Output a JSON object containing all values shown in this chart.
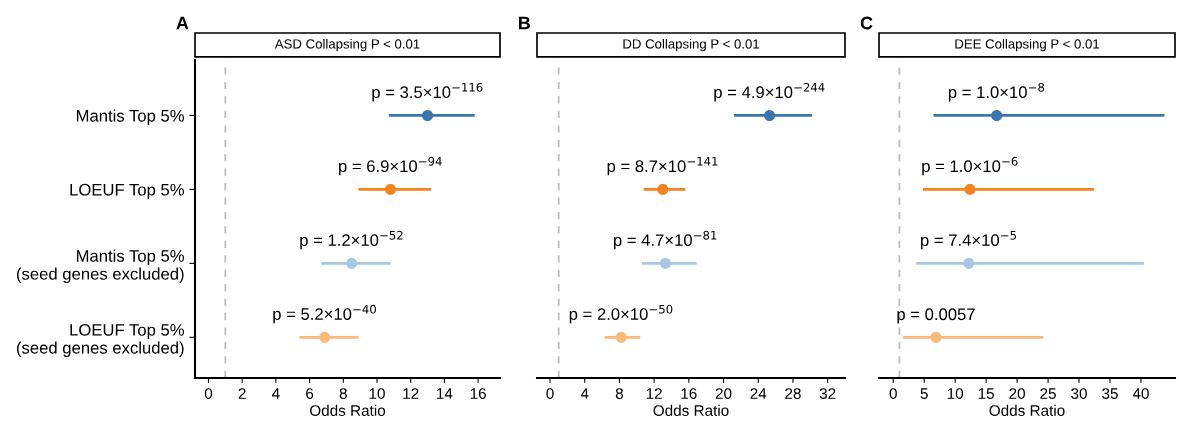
{
  "chart_data": [
    {
      "type": "scatter",
      "orientation": "horizontal",
      "title": "ASD Collapsing P < 0.01",
      "xlabel": "Odds Ratio",
      "categories": [
        "Mantis Top 5%",
        "LOEUF Top 5%",
        "Mantis Top 5%\n(seed genes excluded)",
        "LOEUF Top 5%\n(seed genes excluded)"
      ],
      "values": [
        13.0,
        10.8,
        8.5,
        6.9
      ],
      "errors": [
        [
          10.7,
          15.8
        ],
        [
          8.9,
          13.2
        ],
        [
          6.7,
          10.8
        ],
        [
          5.4,
          8.9
        ]
      ],
      "colors": [
        "#3a76b0",
        "#f5821f",
        "#a6c8e6",
        "#f8b97a"
      ],
      "marker": "circle",
      "xlim": [
        -0.8,
        17.3
      ],
      "xticks": [
        0,
        2,
        4,
        6,
        8,
        10,
        12,
        14,
        16
      ],
      "ref_lines": [
        {
          "axis": "x",
          "value": 1,
          "color": "#bdbdbd",
          "line_style": "dashed"
        }
      ],
      "annotations": [
        "A",
        {
          "text": "p = 3.5×10$^{−116}$",
          "x": 13.0,
          "y": "Mantis Top 5%"
        },
        {
          "text": "p = 6.9×10$^{−94}$",
          "x": 10.8,
          "y": "LOEUF Top 5%"
        },
        {
          "text": "p = 1.2×10$^{−52}$",
          "x": 8.5,
          "y": "Mantis Top 5%\n(seed genes excluded)"
        },
        {
          "text": "p = 5.2×10$^{−40}$",
          "x": 6.9,
          "y": "LOEUF Top 5%\n(seed genes excluded)"
        }
      ]
    },
    {
      "type": "scatter",
      "orientation": "horizontal",
      "title": "DD Collapsing P < 0.01",
      "xlabel": "Odds Ratio",
      "tick_labels": "x",
      "categories": [
        "Mantis Top 5%",
        "LOEUF Top 5%",
        "Mantis Top 5%\n(seed genes excluded)",
        "LOEUF Top 5%\n(seed genes excluded)"
      ],
      "values": [
        25.3,
        13.0,
        13.3,
        8.2
      ],
      "errors": [
        [
          21.2,
          30.2
        ],
        [
          10.8,
          15.6
        ],
        [
          10.6,
          16.9
        ],
        [
          6.3,
          10.4
        ]
      ],
      "colors": [
        "#3a76b0",
        "#f5821f",
        "#a6c8e6",
        "#f8b97a"
      ],
      "marker": "circle",
      "xlim": [
        -1.5,
        34
      ],
      "xticks": [
        0,
        4,
        8,
        12,
        16,
        20,
        24,
        28,
        32
      ],
      "ref_lines": [
        {
          "axis": "x",
          "value": 1,
          "color": "#bdbdbd",
          "line_style": "dashed"
        }
      ],
      "annotations": [
        "B",
        {
          "text": "p = 4.9×10$^{−244}$",
          "x": 25.3,
          "y": "Mantis Top 5%"
        },
        {
          "text": "p = 8.7×10$^{−141}$",
          "x": 13.0,
          "y": "LOEUF Top 5%"
        },
        {
          "text": "p = 4.7×10$^{−81}$",
          "x": 13.3,
          "y": "Mantis Top 5%\n(seed genes excluded)"
        },
        {
          "text": "p = 2.0×10$^{−50}$",
          "x": 8.2,
          "y": "LOEUF Top 5%\n(seed genes excluded)"
        }
      ]
    },
    {
      "type": "scatter",
      "orientation": "horizontal",
      "title": "DEE Collapsing P < 0.01",
      "xlabel": "Odds Ratio",
      "tick_labels": "x",
      "categories": [
        "Mantis Top 5%",
        "LOEUF Top 5%",
        "Mantis Top 5%\n(seed genes excluded)",
        "LOEUF Top 5%\n(seed genes excluded)"
      ],
      "values": [
        16.7,
        12.4,
        12.2,
        6.9
      ],
      "errors": [
        [
          6.5,
          43.8
        ],
        [
          4.8,
          32.4
        ],
        [
          3.7,
          40.5
        ],
        [
          1.6,
          24.2
        ]
      ],
      "colors": [
        "#3a76b0",
        "#f5821f",
        "#a6c8e6",
        "#f8b97a"
      ],
      "marker": "circle",
      "xlim": [
        -2.3,
        45.5
      ],
      "xticks": [
        0,
        5,
        10,
        15,
        20,
        25,
        30,
        35,
        40
      ],
      "ref_lines": [
        {
          "axis": "x",
          "value": 1,
          "color": "#bdbdbd",
          "line_style": "dashed"
        }
      ],
      "annotations": [
        "C",
        {
          "text": "p = 1.0×10$^{−8}$",
          "x": 16.7,
          "y": "Mantis Top 5%"
        },
        {
          "text": "p = 1.0×10$^{−6}$",
          "x": 12.4,
          "y": "LOEUF Top 5%"
        },
        {
          "text": "p = 7.4×10$^{−5}$",
          "x": 12.2,
          "y": "Mantis Top 5%\n(seed genes excluded)"
        },
        {
          "text": "p = 0.0057",
          "x": 6.9,
          "y": "LOEUF Top 5%\n(seed genes excluded)"
        }
      ]
    }
  ]
}
